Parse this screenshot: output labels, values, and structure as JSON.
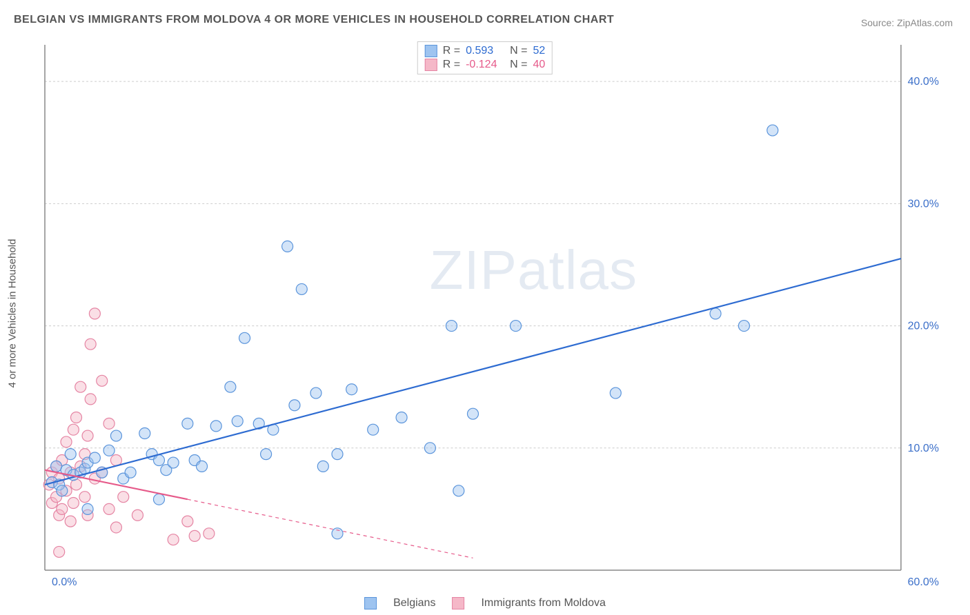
{
  "title": "BELGIAN VS IMMIGRANTS FROM MOLDOVA 4 OR MORE VEHICLES IN HOUSEHOLD CORRELATION CHART",
  "source": "Source: ZipAtlas.com",
  "watermark": "ZIPatlas",
  "y_axis_label": "4 or more Vehicles in Household",
  "chart": {
    "type": "scatter",
    "xlim": [
      0,
      60
    ],
    "ylim": [
      0,
      43
    ],
    "x_ticks": [
      {
        "v": 0,
        "label": "0.0%"
      },
      {
        "v": 60,
        "label": "60.0%"
      }
    ],
    "y_ticks": [
      {
        "v": 10,
        "label": "10.0%"
      },
      {
        "v": 20,
        "label": "20.0%"
      },
      {
        "v": 30,
        "label": "30.0%"
      },
      {
        "v": 40,
        "label": "40.0%"
      }
    ],
    "x_tick_color": "#3b6fc9",
    "y_tick_color": "#3b6fc9",
    "grid_color": "#cccccc",
    "axis_color": "#888888",
    "grid_dash": "3,3",
    "marker_radius": 8,
    "marker_opacity": 0.45,
    "line_width": 2.2,
    "series": [
      {
        "name": "Belgians",
        "color_fill": "#9ec4f0",
        "color_stroke": "#5a94db",
        "line_color": "#2d6bd1",
        "r_value": "0.593",
        "n_value": "52",
        "trend": {
          "x1": 0,
          "y1": 7,
          "x2": 60,
          "y2": 25.5,
          "dash_after_x": 60
        },
        "points": [
          [
            0.5,
            7.2
          ],
          [
            0.8,
            8.5
          ],
          [
            1.0,
            7.0
          ],
          [
            1.2,
            6.5
          ],
          [
            1.5,
            8.2
          ],
          [
            1.8,
            9.5
          ],
          [
            2.0,
            7.8
          ],
          [
            2.5,
            8.0
          ],
          [
            2.8,
            8.3
          ],
          [
            3.0,
            8.8
          ],
          [
            3.0,
            5.0
          ],
          [
            3.5,
            9.2
          ],
          [
            4.0,
            8.0
          ],
          [
            4.5,
            9.8
          ],
          [
            5.0,
            11.0
          ],
          [
            5.5,
            7.5
          ],
          [
            6.0,
            8.0
          ],
          [
            7.0,
            11.2
          ],
          [
            7.5,
            9.5
          ],
          [
            8.0,
            9.0
          ],
          [
            8.0,
            5.8
          ],
          [
            8.5,
            8.2
          ],
          [
            9.0,
            8.8
          ],
          [
            10.0,
            12.0
          ],
          [
            10.5,
            9.0
          ],
          [
            11.0,
            8.5
          ],
          [
            12.0,
            11.8
          ],
          [
            13.0,
            15.0
          ],
          [
            13.5,
            12.2
          ],
          [
            14.0,
            19.0
          ],
          [
            15.0,
            12.0
          ],
          [
            15.5,
            9.5
          ],
          [
            16.0,
            11.5
          ],
          [
            17.0,
            26.5
          ],
          [
            17.5,
            13.5
          ],
          [
            18.0,
            23.0
          ],
          [
            19.0,
            14.5
          ],
          [
            19.5,
            8.5
          ],
          [
            20.5,
            9.5
          ],
          [
            20.5,
            3.0
          ],
          [
            21.5,
            14.8
          ],
          [
            23.0,
            11.5
          ],
          [
            25.0,
            12.5
          ],
          [
            27.0,
            10.0
          ],
          [
            28.5,
            20.0
          ],
          [
            29.0,
            6.5
          ],
          [
            30.0,
            12.8
          ],
          [
            33.0,
            20.0
          ],
          [
            40.0,
            14.5
          ],
          [
            47.0,
            21.0
          ],
          [
            49.0,
            20.0
          ],
          [
            51.0,
            36.0
          ]
        ]
      },
      {
        "name": "Immigrants from Moldova",
        "color_fill": "#f5b8c8",
        "color_stroke": "#e584a3",
        "line_color": "#e65a8a",
        "r_value": "-0.124",
        "n_value": "40",
        "trend": {
          "x1": 0,
          "y1": 8.2,
          "x2": 10,
          "y2": 5.8,
          "dash_after_x": 10,
          "dash_x2": 30,
          "dash_y2": 1.0
        },
        "points": [
          [
            0.3,
            7.0
          ],
          [
            0.5,
            5.5
          ],
          [
            0.5,
            8.0
          ],
          [
            0.8,
            6.0
          ],
          [
            0.8,
            8.5
          ],
          [
            1.0,
            4.5
          ],
          [
            1.0,
            7.5
          ],
          [
            1.2,
            9.0
          ],
          [
            1.2,
            5.0
          ],
          [
            1.5,
            6.5
          ],
          [
            1.5,
            10.5
          ],
          [
            1.8,
            8.0
          ],
          [
            1.8,
            4.0
          ],
          [
            2.0,
            11.5
          ],
          [
            2.0,
            5.5
          ],
          [
            2.2,
            7.0
          ],
          [
            2.2,
            12.5
          ],
          [
            2.5,
            8.5
          ],
          [
            2.5,
            15.0
          ],
          [
            2.8,
            6.0
          ],
          [
            2.8,
            9.5
          ],
          [
            3.0,
            11.0
          ],
          [
            3.0,
            4.5
          ],
          [
            3.2,
            14.0
          ],
          [
            3.2,
            18.5
          ],
          [
            3.5,
            7.5
          ],
          [
            3.5,
            21.0
          ],
          [
            4.0,
            15.5
          ],
          [
            4.0,
            8.0
          ],
          [
            4.5,
            5.0
          ],
          [
            4.5,
            12.0
          ],
          [
            5.0,
            3.5
          ],
          [
            5.0,
            9.0
          ],
          [
            5.5,
            6.0
          ],
          [
            1.0,
            1.5
          ],
          [
            6.5,
            4.5
          ],
          [
            9.0,
            2.5
          ],
          [
            10.0,
            4.0
          ],
          [
            10.5,
            2.8
          ],
          [
            11.5,
            3.0
          ]
        ]
      }
    ],
    "stats_box": {
      "r_label": "R =",
      "n_label": "N ="
    },
    "legend": {
      "items": [
        "Belgians",
        "Immigrants from Moldova"
      ]
    }
  }
}
